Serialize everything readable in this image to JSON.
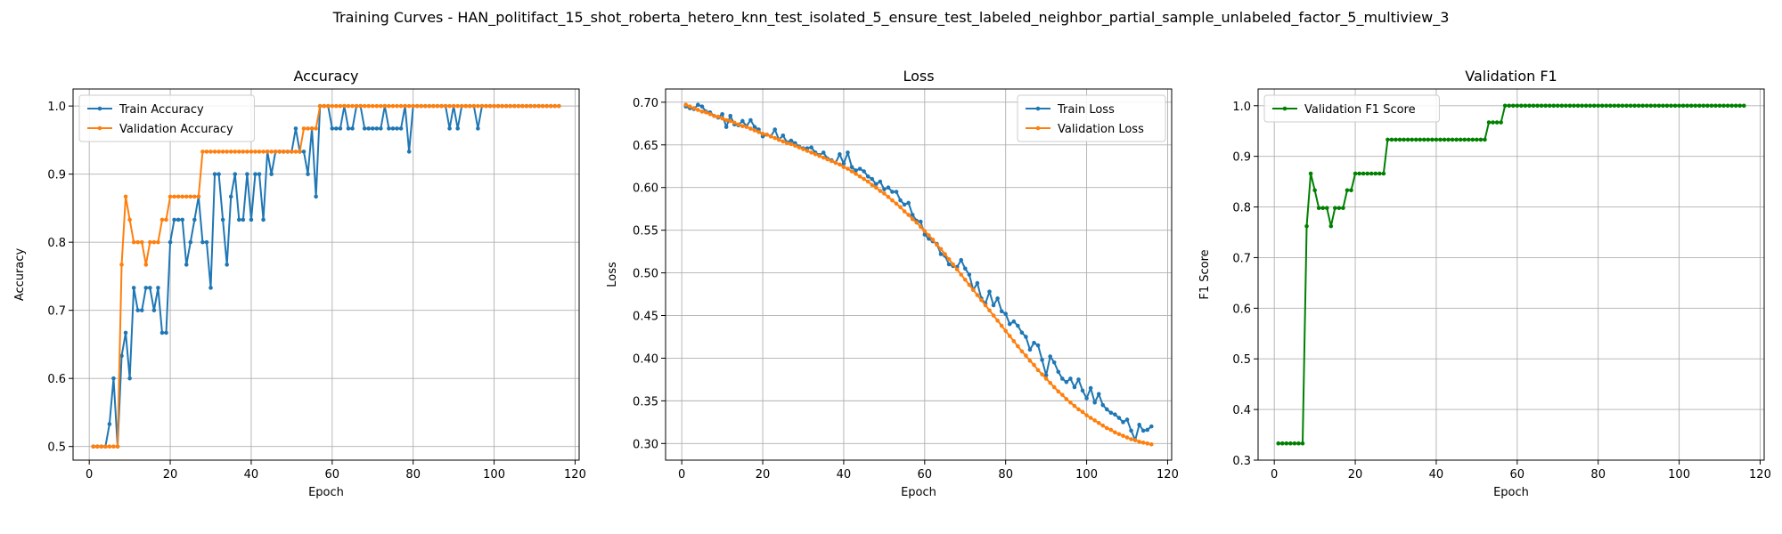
{
  "figure": {
    "title": "Training Curves - HAN_politifact_15_shot_roberta_hetero_knn_test_isolated_5_ensure_test_labeled_neighbor_partial_sample_unlabeled_factor_5_multiview_3"
  },
  "colors": {
    "blue": "#1f77b4",
    "orange": "#ff7f0e",
    "green": "#008000",
    "grid": "#b0b0b0"
  },
  "chart_data": [
    {
      "type": "line",
      "title": "Accuracy",
      "xlabel": "Epoch",
      "ylabel": "Accuracy",
      "xlim": [
        -4,
        121
      ],
      "ylim": [
        0.48,
        1.025
      ],
      "xticks": [
        0,
        20,
        40,
        60,
        80,
        100,
        120
      ],
      "yticks": [
        0.5,
        0.6,
        0.7,
        0.8,
        0.9,
        1.0
      ],
      "ytick_labels": [
        "0.5",
        "0.6",
        "0.7",
        "0.8",
        "0.9",
        "1.0"
      ],
      "grid": true,
      "legend_position": "upper-left",
      "x_start": 1,
      "series": [
        {
          "name": "Train Accuracy",
          "color": "#1f77b4",
          "values": [
            0.5,
            0.5,
            0.5,
            0.5,
            0.533,
            0.6,
            0.5,
            0.633,
            0.667,
            0.6,
            0.733,
            0.7,
            0.7,
            0.733,
            0.733,
            0.7,
            0.733,
            0.667,
            0.667,
            0.8,
            0.833,
            0.833,
            0.833,
            0.767,
            0.8,
            0.833,
            0.867,
            0.8,
            0.8,
            0.733,
            0.9,
            0.9,
            0.833,
            0.767,
            0.867,
            0.9,
            0.833,
            0.833,
            0.9,
            0.833,
            0.9,
            0.9,
            0.833,
            0.933,
            0.9,
            0.933,
            0.933,
            0.933,
            0.933,
            0.933,
            0.967,
            0.933,
            0.933,
            0.9,
            0.967,
            0.867,
            1.0,
            1.0,
            1.0,
            0.967,
            0.967,
            0.967,
            1.0,
            0.967,
            0.967,
            1.0,
            1.0,
            0.967,
            0.967,
            0.967,
            0.967,
            0.967,
            1.0,
            0.967,
            0.967,
            0.967,
            0.967,
            1.0,
            0.933,
            1.0,
            1.0,
            1.0,
            1.0,
            1.0,
            1.0,
            1.0,
            1.0,
            1.0,
            0.967,
            1.0,
            0.967,
            1.0,
            1.0,
            1.0,
            1.0,
            0.967,
            1.0,
            1.0,
            1.0,
            1.0,
            1.0,
            1.0,
            1.0,
            1.0,
            1.0,
            1.0,
            1.0,
            1.0,
            1.0,
            1.0,
            1.0,
            1.0,
            1.0,
            1.0,
            1.0,
            1.0
          ]
        },
        {
          "name": "Validation Accuracy",
          "color": "#ff7f0e",
          "values": [
            0.5,
            0.5,
            0.5,
            0.5,
            0.5,
            0.5,
            0.5,
            0.767,
            0.867,
            0.833,
            0.8,
            0.8,
            0.8,
            0.767,
            0.8,
            0.8,
            0.8,
            0.833,
            0.833,
            0.867,
            0.867,
            0.867,
            0.867,
            0.867,
            0.867,
            0.867,
            0.867,
            0.933,
            0.933,
            0.933,
            0.933,
            0.933,
            0.933,
            0.933,
            0.933,
            0.933,
            0.933,
            0.933,
            0.933,
            0.933,
            0.933,
            0.933,
            0.933,
            0.933,
            0.933,
            0.933,
            0.933,
            0.933,
            0.933,
            0.933,
            0.933,
            0.933,
            0.967,
            0.967,
            0.967,
            0.967,
            1.0,
            1.0,
            1.0,
            1.0,
            1.0,
            1.0,
            1.0,
            1.0,
            1.0,
            1.0,
            1.0,
            1.0,
            1.0,
            1.0,
            1.0,
            1.0,
            1.0,
            1.0,
            1.0,
            1.0,
            1.0,
            1.0,
            1.0,
            1.0,
            1.0,
            1.0,
            1.0,
            1.0,
            1.0,
            1.0,
            1.0,
            1.0,
            1.0,
            1.0,
            1.0,
            1.0,
            1.0,
            1.0,
            1.0,
            1.0,
            1.0,
            1.0,
            1.0,
            1.0,
            1.0,
            1.0,
            1.0,
            1.0,
            1.0,
            1.0,
            1.0,
            1.0,
            1.0,
            1.0,
            1.0,
            1.0,
            1.0,
            1.0,
            1.0,
            1.0
          ]
        }
      ]
    },
    {
      "type": "line",
      "title": "Loss",
      "xlabel": "Epoch",
      "ylabel": "Loss",
      "xlim": [
        -4,
        121
      ],
      "ylim": [
        0.2805,
        0.7155
      ],
      "xticks": [
        0,
        20,
        40,
        60,
        80,
        100,
        120
      ],
      "yticks": [
        0.3,
        0.35,
        0.4,
        0.45,
        0.5,
        0.55,
        0.6,
        0.65,
        0.7
      ],
      "ytick_labels": [
        "0.30",
        "0.35",
        "0.40",
        "0.45",
        "0.50",
        "0.55",
        "0.60",
        "0.65",
        "0.70"
      ],
      "grid": true,
      "legend_position": "upper-right",
      "x_start": 1,
      "series": [
        {
          "name": "Train Loss",
          "color": "#1f77b4",
          "values": [
            0.695,
            0.693,
            0.692,
            0.697,
            0.695,
            0.689,
            0.688,
            0.684,
            0.682,
            0.686,
            0.671,
            0.684,
            0.674,
            0.673,
            0.678,
            0.672,
            0.679,
            0.671,
            0.668,
            0.66,
            0.662,
            0.66,
            0.668,
            0.656,
            0.661,
            0.653,
            0.655,
            0.652,
            0.648,
            0.646,
            0.646,
            0.647,
            0.641,
            0.638,
            0.641,
            0.634,
            0.632,
            0.629,
            0.639,
            0.628,
            0.641,
            0.624,
            0.62,
            0.622,
            0.619,
            0.613,
            0.61,
            0.604,
            0.607,
            0.598,
            0.6,
            0.595,
            0.595,
            0.585,
            0.58,
            0.582,
            0.568,
            0.561,
            0.56,
            0.545,
            0.54,
            0.537,
            0.534,
            0.522,
            0.52,
            0.51,
            0.508,
            0.507,
            0.515,
            0.505,
            0.498,
            0.48,
            0.488,
            0.47,
            0.464,
            0.478,
            0.462,
            0.47,
            0.455,
            0.452,
            0.44,
            0.443,
            0.438,
            0.43,
            0.425,
            0.41,
            0.418,
            0.415,
            0.398,
            0.38,
            0.402,
            0.395,
            0.384,
            0.376,
            0.372,
            0.376,
            0.366,
            0.375,
            0.362,
            0.353,
            0.365,
            0.348,
            0.358,
            0.345,
            0.34,
            0.336,
            0.334,
            0.33,
            0.325,
            0.328,
            0.315,
            0.304,
            0.322,
            0.315,
            0.316,
            0.32
          ]
        },
        {
          "name": "Validation Loss",
          "color": "#ff7f0e",
          "values": [
            0.697,
            0.695,
            0.693,
            0.691,
            0.689,
            0.688,
            0.686,
            0.684,
            0.683,
            0.681,
            0.679,
            0.678,
            0.676,
            0.674,
            0.672,
            0.671,
            0.669,
            0.667,
            0.665,
            0.663,
            0.662,
            0.66,
            0.658,
            0.656,
            0.654,
            0.652,
            0.651,
            0.649,
            0.647,
            0.645,
            0.643,
            0.641,
            0.639,
            0.637,
            0.635,
            0.633,
            0.631,
            0.629,
            0.627,
            0.624,
            0.622,
            0.619,
            0.616,
            0.613,
            0.61,
            0.607,
            0.603,
            0.6,
            0.596,
            0.593,
            0.589,
            0.585,
            0.581,
            0.577,
            0.572,
            0.568,
            0.563,
            0.559,
            0.554,
            0.549,
            0.544,
            0.539,
            0.533,
            0.528,
            0.522,
            0.516,
            0.51,
            0.504,
            0.498,
            0.492,
            0.486,
            0.48,
            0.474,
            0.468,
            0.462,
            0.456,
            0.45,
            0.444,
            0.438,
            0.432,
            0.426,
            0.42,
            0.414,
            0.408,
            0.403,
            0.397,
            0.392,
            0.386,
            0.381,
            0.376,
            0.371,
            0.366,
            0.361,
            0.357,
            0.352,
            0.348,
            0.344,
            0.34,
            0.337,
            0.333,
            0.33,
            0.327,
            0.324,
            0.321,
            0.318,
            0.316,
            0.313,
            0.311,
            0.309,
            0.307,
            0.305,
            0.304,
            0.302,
            0.301,
            0.3,
            0.299
          ]
        }
      ]
    },
    {
      "type": "line",
      "title": "Validation F1",
      "xlabel": "Epoch",
      "ylabel": "F1 Score",
      "xlim": [
        -4,
        121
      ],
      "ylim": [
        0.3,
        1.033
      ],
      "xticks": [
        0,
        20,
        40,
        60,
        80,
        100,
        120
      ],
      "yticks": [
        0.3,
        0.4,
        0.5,
        0.6,
        0.7,
        0.8,
        0.9,
        1.0
      ],
      "ytick_labels": [
        "0.3",
        "0.4",
        "0.5",
        "0.6",
        "0.7",
        "0.8",
        "0.9",
        "1.0"
      ],
      "grid": true,
      "legend_position": "upper-left",
      "x_start": 1,
      "series": [
        {
          "name": "Validation F1 Score",
          "color": "#008000",
          "values": [
            0.333,
            0.333,
            0.333,
            0.333,
            0.333,
            0.333,
            0.333,
            0.762,
            0.866,
            0.833,
            0.798,
            0.798,
            0.798,
            0.762,
            0.798,
            0.798,
            0.798,
            0.833,
            0.833,
            0.866,
            0.866,
            0.866,
            0.866,
            0.866,
            0.866,
            0.866,
            0.866,
            0.933,
            0.933,
            0.933,
            0.933,
            0.933,
            0.933,
            0.933,
            0.933,
            0.933,
            0.933,
            0.933,
            0.933,
            0.933,
            0.933,
            0.933,
            0.933,
            0.933,
            0.933,
            0.933,
            0.933,
            0.933,
            0.933,
            0.933,
            0.933,
            0.933,
            0.967,
            0.967,
            0.967,
            0.967,
            1.0,
            1.0,
            1.0,
            1.0,
            1.0,
            1.0,
            1.0,
            1.0,
            1.0,
            1.0,
            1.0,
            1.0,
            1.0,
            1.0,
            1.0,
            1.0,
            1.0,
            1.0,
            1.0,
            1.0,
            1.0,
            1.0,
            1.0,
            1.0,
            1.0,
            1.0,
            1.0,
            1.0,
            1.0,
            1.0,
            1.0,
            1.0,
            1.0,
            1.0,
            1.0,
            1.0,
            1.0,
            1.0,
            1.0,
            1.0,
            1.0,
            1.0,
            1.0,
            1.0,
            1.0,
            1.0,
            1.0,
            1.0,
            1.0,
            1.0,
            1.0,
            1.0,
            1.0,
            1.0,
            1.0,
            1.0,
            1.0,
            1.0,
            1.0,
            1.0
          ]
        }
      ]
    }
  ]
}
